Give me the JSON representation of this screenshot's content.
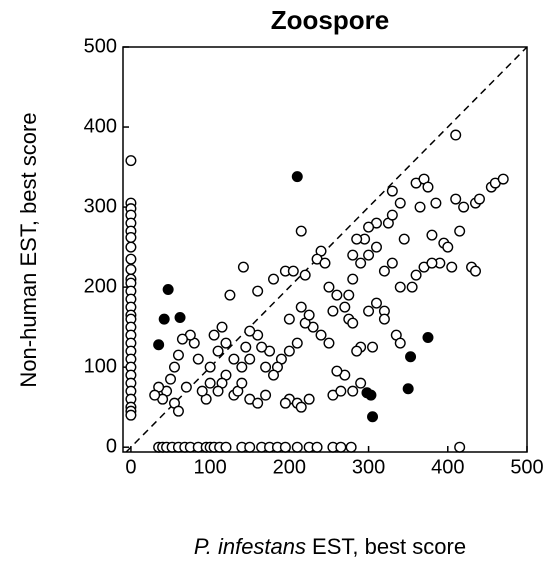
{
  "chart_data": {
    "type": "scatter",
    "title": "Zoospore",
    "x_label": {
      "species": "P. infestans",
      "text": "EST, best score"
    },
    "y_label": "Non-human EST, best score",
    "xlim": [
      -10,
      500
    ],
    "ylim": [
      -6,
      500
    ],
    "xticks": [
      0,
      100,
      200,
      300,
      400,
      500
    ],
    "yticks": [
      0,
      100,
      200,
      300,
      400,
      500
    ],
    "diagonal": true,
    "series": [
      {
        "marker": "open",
        "color": "#000000",
        "x": [
          0,
          0,
          0,
          0,
          0,
          0,
          0,
          0,
          0,
          0,
          0,
          0,
          0,
          0,
          0,
          0,
          0,
          0,
          0,
          0,
          0,
          0,
          0,
          0,
          0,
          0,
          0,
          0,
          0,
          0,
          35,
          40,
          45,
          52,
          60,
          68,
          75,
          85,
          95,
          100,
          105,
          112,
          120,
          140,
          150,
          165,
          175,
          185,
          195,
          210,
          225,
          235,
          255,
          265,
          278,
          415,
          410,
          215,
          240,
          142,
          330,
          340,
          360,
          370,
          375,
          365,
          385,
          410,
          420,
          435,
          440,
          455,
          460,
          470,
          415,
          395,
          400,
          380,
          405,
          390,
          430,
          435,
          360,
          370,
          380,
          355,
          340,
          345,
          325,
          330,
          310,
          300,
          295,
          285,
          280,
          290,
          300,
          310,
          320,
          330,
          280,
          275,
          260,
          270,
          275,
          280,
          300,
          310,
          320,
          335,
          340,
          320,
          305,
          290,
          285,
          280,
          290,
          270,
          260,
          250,
          240,
          230,
          220,
          225,
          215,
          200,
          210,
          200,
          190,
          185,
          175,
          165,
          160,
          150,
          140,
          130,
          120,
          115,
          110,
          100,
          95,
          90,
          85,
          80,
          75,
          65,
          60,
          55,
          50,
          45,
          40,
          35,
          30,
          55,
          60,
          70,
          105,
          115,
          120,
          125,
          160,
          180,
          195,
          205,
          220,
          235,
          245,
          250,
          255,
          200,
          210,
          215,
          195,
          225,
          150,
          160,
          170,
          180,
          130,
          135,
          140,
          170,
          150,
          255,
          265,
          100,
          110,
          145
        ],
        "values": [
          358,
          305,
          298,
          290,
          280,
          270,
          262,
          250,
          235,
          222,
          210,
          205,
          195,
          185,
          175,
          165,
          160,
          150,
          140,
          130,
          120,
          110,
          100,
          90,
          80,
          70,
          60,
          50,
          45,
          40,
          0,
          0,
          0,
          0,
          0,
          0,
          0,
          0,
          0,
          0,
          0,
          0,
          0,
          0,
          0,
          0,
          0,
          0,
          0,
          0,
          0,
          0,
          0,
          0,
          0,
          0,
          390,
          270,
          245,
          225,
          320,
          305,
          330,
          335,
          325,
          300,
          305,
          310,
          300,
          305,
          310,
          325,
          330,
          335,
          270,
          255,
          250,
          265,
          225,
          230,
          225,
          220,
          215,
          225,
          230,
          200,
          200,
          260,
          280,
          290,
          280,
          275,
          260,
          260,
          240,
          230,
          240,
          250,
          220,
          230,
          210,
          190,
          190,
          175,
          160,
          155,
          170,
          180,
          170,
          140,
          130,
          160,
          125,
          125,
          120,
          70,
          80,
          90,
          95,
          130,
          140,
          150,
          155,
          165,
          175,
          160,
          130,
          120,
          110,
          100,
          120,
          125,
          140,
          145,
          100,
          110,
          90,
          80,
          70,
          80,
          60,
          70,
          110,
          130,
          140,
          135,
          115,
          100,
          85,
          70,
          60,
          75,
          65,
          55,
          45,
          75,
          140,
          150,
          130,
          190,
          195,
          210,
          220,
          220,
          215,
          235,
          230,
          200,
          170,
          60,
          55,
          50,
          55,
          60,
          60,
          55,
          65,
          90,
          65,
          70,
          80,
          100,
          110,
          65,
          70,
          100,
          120,
          125
        ]
      },
      {
        "marker": "filled",
        "color": "#000000",
        "x": [
          210,
          47,
          42,
          62,
          35,
          375,
          353,
          350,
          298,
          303,
          305
        ],
        "values": [
          338,
          197,
          160,
          162,
          128,
          137,
          113,
          73,
          68,
          65,
          38
        ]
      }
    ]
  }
}
